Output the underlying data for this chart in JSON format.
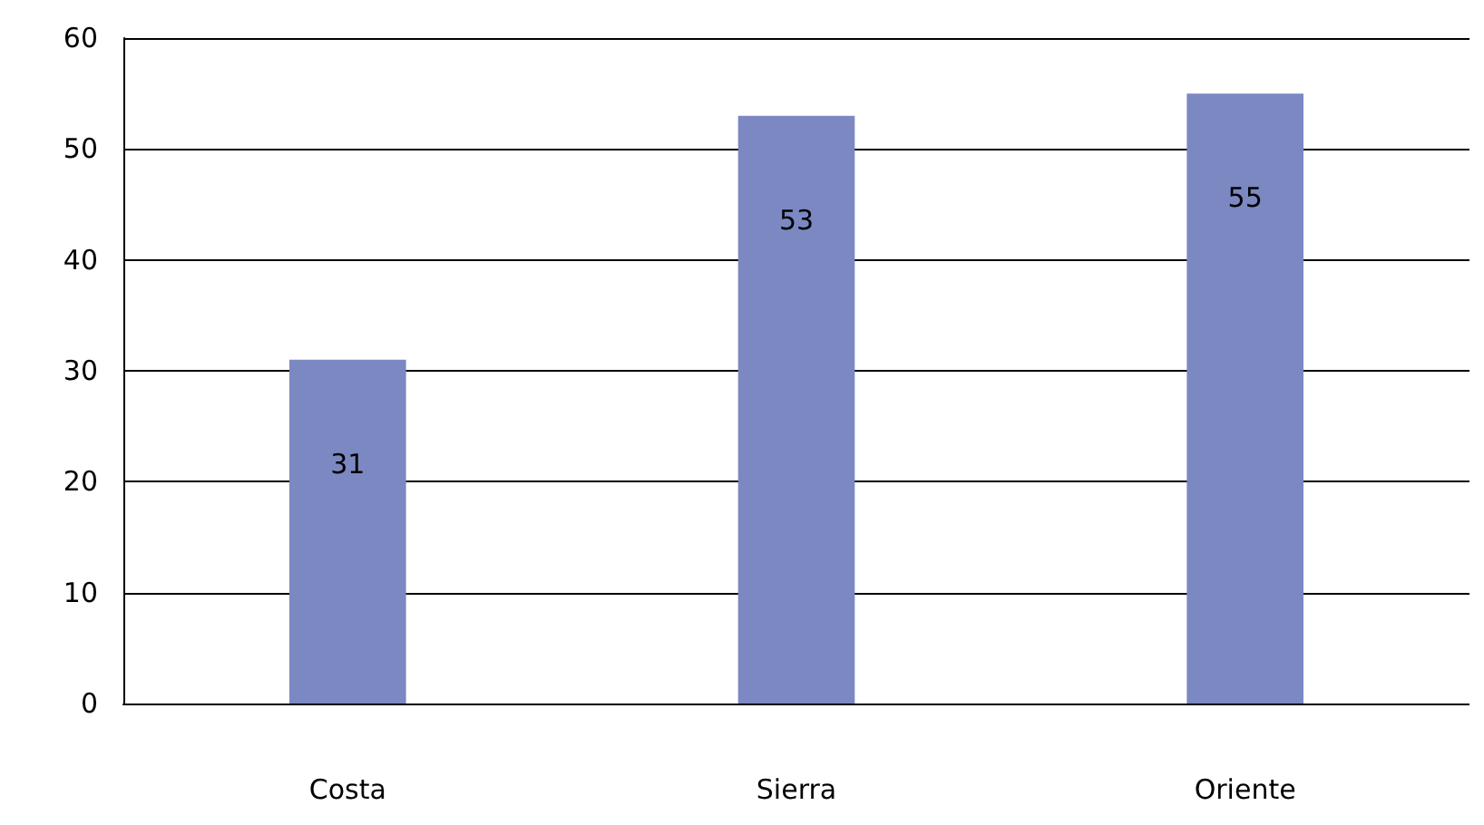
{
  "chart_data": {
    "type": "bar",
    "categories": [
      "Costa",
      "Sierra",
      "Oriente"
    ],
    "values": [
      31,
      53,
      55
    ],
    "color": "#7b88c2",
    "ylim": [
      0,
      60
    ],
    "yticks": [
      0,
      10,
      20,
      30,
      40,
      50,
      60
    ],
    "grid": "y",
    "data_labels": true
  }
}
